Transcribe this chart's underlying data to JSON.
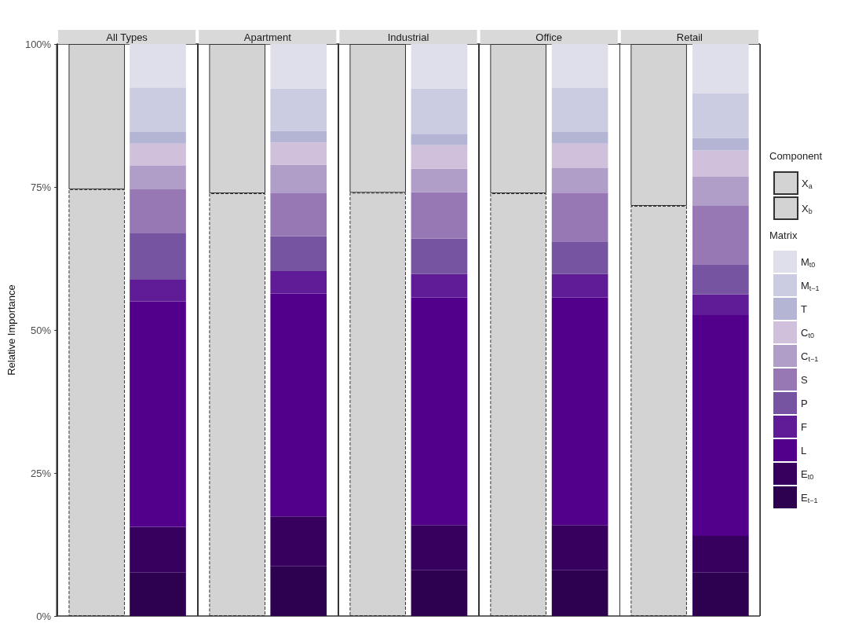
{
  "chart_data": [
    {
      "type": "bar",
      "ylabel": "Relative Importance",
      "categories": [
        null,
        null,
        null,
        null,
        null
      ],
      "tick_labels": "y",
      "stacked": true,
      "ylim": [
        0,
        100
      ],
      "yticks": [
        {
          "value": 0,
          "label": "0%"
        },
        {
          "value": 25,
          "label": "25%"
        },
        {
          "value": 50,
          "label": "50%"
        },
        {
          "value": 75,
          "label": "75%"
        },
        {
          "value": 100,
          "label": "100%"
        }
      ],
      "legend": "right",
      "legend_title": "Component",
      "series": [
        {
          "name": "X$_{b}$",
          "color": "#d3d3d3",
          "line_style": "dashed",
          "values": [
            74.6,
            73.9,
            74.0,
            73.9,
            71.7
          ]
        },
        {
          "name": "X$_{a}$",
          "color": "#d3d3d3",
          "line_style": "solid",
          "values": [
            25.4,
            26.1,
            26.0,
            26.1,
            28.3
          ]
        }
      ]
    },
    {
      "type": "bar",
      "categories": [
        "All Types",
        "Apartment",
        "Industrial",
        "Office",
        "Retail"
      ],
      "stacked": true,
      "ylim": [
        0,
        100
      ],
      "tick_labels": "x",
      "legend": "right",
      "legend_title": "Matrix",
      "series": [
        {
          "name": "E$_{t−1}$",
          "color": "#2e0050",
          "values": [
            7.6,
            8.7,
            8.0,
            8.0,
            7.6
          ]
        },
        {
          "name": "E$_{t0}$",
          "color": "#38005e",
          "values": [
            8.0,
            8.7,
            7.9,
            7.9,
            6.4
          ]
        },
        {
          "name": "L",
          "color": "#52008c",
          "values": [
            39.4,
            39.0,
            39.8,
            39.8,
            38.6
          ]
        },
        {
          "name": "F",
          "color": "#601b96",
          "values": [
            3.8,
            3.9,
            4.1,
            4.1,
            3.6
          ]
        },
        {
          "name": "P",
          "color": "#7754a2",
          "values": [
            8.1,
            6.1,
            6.2,
            5.7,
            5.3
          ]
        },
        {
          "name": "S",
          "color": "#9878b4",
          "values": [
            7.7,
            7.5,
            8.1,
            8.5,
            10.2
          ]
        },
        {
          "name": "C$_{t−1}$",
          "color": "#b09ec8",
          "values": [
            4.1,
            5.0,
            4.1,
            4.3,
            5.1
          ]
        },
        {
          "name": "C$_{t0}$",
          "color": "#d0c0dc",
          "values": [
            3.9,
            3.9,
            4.1,
            4.3,
            4.6
          ]
        },
        {
          "name": "T",
          "color": "#b4b4d4",
          "values": [
            2.0,
            2.0,
            2.0,
            2.0,
            2.2
          ]
        },
        {
          "name": "M$_{t−1}$",
          "color": "#cbcbe2",
          "values": [
            7.8,
            7.4,
            7.9,
            7.7,
            7.8
          ]
        },
        {
          "name": "M$_{t0}$",
          "color": "#dedfea",
          "values": [
            7.6,
            7.8,
            7.8,
            7.7,
            8.6
          ]
        }
      ]
    }
  ]
}
